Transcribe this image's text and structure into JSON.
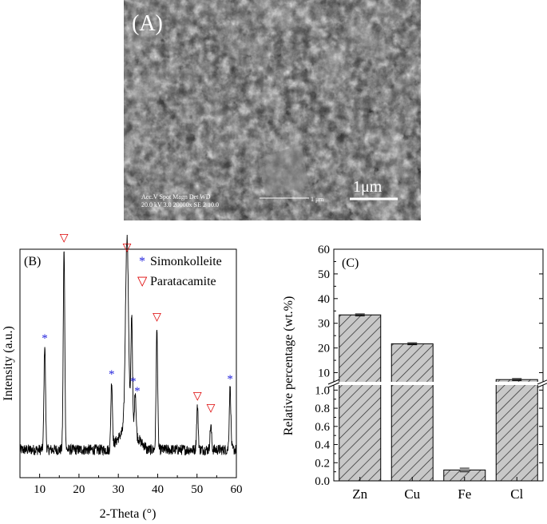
{
  "panel_a": {
    "label": "(A)",
    "scale_bar": "1μm",
    "info_line1": "Acc.V  Spot Magn    Det  WD",
    "info_line2": "20.0 kV 3.0   20000x   SE 2   10.0",
    "info_scale": "1 μm"
  },
  "chart_data": [
    {
      "type": "line",
      "panel_label": "(B)",
      "xlabel": "2-Theta (°)",
      "ylabel": "Intensity (a.u.)",
      "xlim": [
        5,
        60
      ],
      "xticks": [
        10,
        20,
        30,
        40,
        50,
        60
      ],
      "legend": [
        {
          "symbol": "*",
          "name": "Simonkolleite",
          "color": "#2222dd"
        },
        {
          "symbol": "▽",
          "name": "Paratacamite",
          "color": "#dd0000"
        }
      ],
      "legend_placement": "top-right",
      "peaks": [
        {
          "x": 11.3,
          "h": 0.44
        },
        {
          "x": 16.2,
          "h": 0.83
        },
        {
          "x": 28.3,
          "h": 0.27
        },
        {
          "x": 32.2,
          "h": 0.8
        },
        {
          "x": 33.4,
          "h": 0.48
        },
        {
          "x": 34.3,
          "h": 0.18
        },
        {
          "x": 39.8,
          "h": 0.5
        },
        {
          "x": 50.1,
          "h": 0.18
        },
        {
          "x": 53.5,
          "h": 0.1
        },
        {
          "x": 58.4,
          "h": 0.26
        }
      ],
      "markers": [
        {
          "x": 11.3,
          "y": 0.48,
          "kind": "simonkolleite"
        },
        {
          "x": 16.2,
          "y": 0.9,
          "kind": "paratacamite"
        },
        {
          "x": 28.3,
          "y": 0.33,
          "kind": "simonkolleite"
        },
        {
          "x": 32.2,
          "y": 0.86,
          "kind": "paratacamite"
        },
        {
          "x": 33.8,
          "y": 0.3,
          "kind": "simonkolleite"
        },
        {
          "x": 34.8,
          "y": 0.26,
          "kind": "simonkolleite"
        },
        {
          "x": 39.8,
          "y": 0.57,
          "kind": "paratacamite"
        },
        {
          "x": 50.1,
          "y": 0.24,
          "kind": "paratacamite"
        },
        {
          "x": 53.5,
          "y": 0.19,
          "kind": "paratacamite"
        },
        {
          "x": 58.4,
          "y": 0.31,
          "kind": "simonkolleite"
        }
      ]
    },
    {
      "type": "bar",
      "panel_label": "(C)",
      "ylabel": "Relative percentage (wt.%)",
      "categories": [
        "Zn",
        "Cu",
        "Fe",
        "Cl"
      ],
      "values": [
        33.4,
        21.7,
        0.12,
        7.2
      ],
      "errors": [
        0.3,
        0.3,
        0.02,
        0.2
      ],
      "axis_break": true,
      "y_lower_range": [
        0,
        1.1
      ],
      "y_upper_range": [
        5,
        60
      ],
      "y_lower_ticks": [
        "0.0",
        "0.2",
        "0.4",
        "0.6",
        "0.8",
        "1.0"
      ],
      "y_upper_ticks": [
        "10",
        "20",
        "30",
        "40",
        "50",
        "60"
      ],
      "bar_fill": "#c8c8c8",
      "hatch": "diagonal"
    }
  ]
}
